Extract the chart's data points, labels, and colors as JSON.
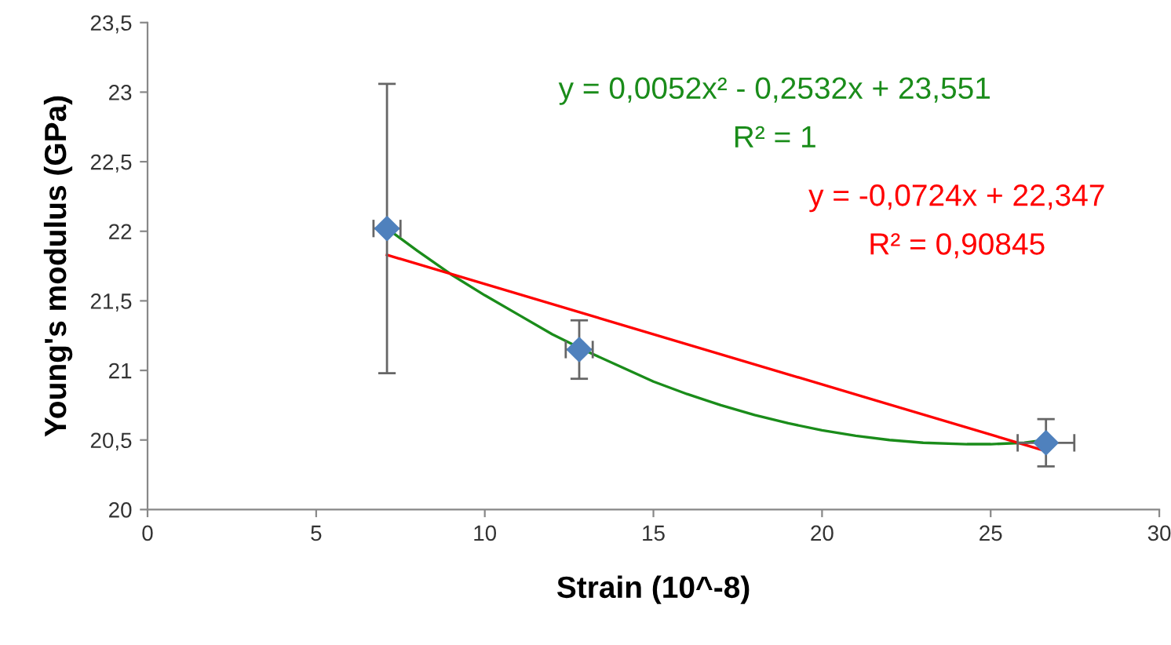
{
  "chart_data": {
    "type": "scatter",
    "xlabel": "Strain (10^-8)",
    "ylabel": "Young's modulus (GPa)",
    "xlim": [
      0,
      30
    ],
    "xticks": [
      0,
      5,
      10,
      15,
      20,
      25,
      30
    ],
    "ylim": [
      20,
      23.5
    ],
    "yticks": [
      20,
      {
        "value": 20.5,
        "label": "20,5"
      },
      21,
      {
        "value": 21.5,
        "label": "21,5"
      },
      22,
      {
        "value": 22.5,
        "label": "22,5"
      },
      23,
      {
        "value": 23.5,
        "label": "23,5"
      }
    ],
    "grid": false,
    "legend": false,
    "series": [
      {
        "type": "line",
        "color": "#1a8c1a",
        "line_style": "solid",
        "marker": "none",
        "x": [
          7.1,
          8,
          9,
          10,
          11,
          12,
          13,
          14,
          15,
          16,
          17,
          18,
          19,
          20,
          21,
          22,
          23,
          24.3,
          25,
          26,
          26.64
        ],
        "values": [
          22.02,
          21.86,
          21.69,
          21.54,
          21.4,
          21.26,
          21.14,
          21.03,
          20.92,
          20.83,
          20.75,
          20.68,
          20.62,
          20.57,
          20.53,
          20.5,
          20.48,
          20.47,
          20.47,
          20.48,
          20.5
        ]
      },
      {
        "type": "line",
        "color": "#ff0000",
        "line_style": "solid",
        "marker": "none",
        "x": [
          7.1,
          26.64
        ],
        "values": [
          21.83,
          20.42
        ]
      },
      {
        "color": "#4f81bd",
        "marker": "diamond",
        "x": [
          7.1,
          12.8,
          26.64
        ],
        "values": [
          22.02,
          21.15,
          20.48
        ],
        "errors": [
          1.04,
          0.21,
          0.17
        ],
        "xerrors": [
          0.4,
          0.4,
          0.84
        ]
      }
    ],
    "annotations": [
      "y = 0,0052x² - 0,2532x + 23,551",
      "R² = 1",
      "y = -0,0724x + 22,347",
      "R² = 0,90845"
    ]
  }
}
